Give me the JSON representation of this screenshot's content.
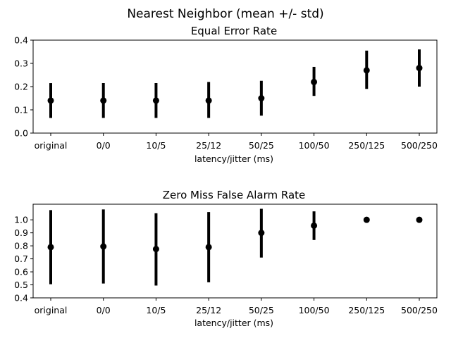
{
  "figure": {
    "suptitle": "Nearest Neighbor (mean +/- std)"
  },
  "chart_data": [
    {
      "type": "scatter",
      "title": "Equal Error Rate",
      "xlabel": "latency/jitter (ms)",
      "ylabel": "",
      "categories": [
        "original",
        "0/0",
        "10/5",
        "25/12",
        "50/25",
        "100/50",
        "250/125",
        "500/250"
      ],
      "values": [
        0.14,
        0.14,
        0.14,
        0.14,
        0.15,
        0.22,
        0.27,
        0.28
      ],
      "error_lower": [
        0.065,
        0.065,
        0.065,
        0.065,
        0.075,
        0.16,
        0.19,
        0.2
      ],
      "error_upper": [
        0.215,
        0.215,
        0.215,
        0.22,
        0.225,
        0.285,
        0.355,
        0.36
      ],
      "ylim": [
        0,
        0.4
      ],
      "yticks": [
        "0.0",
        "0.1",
        "0.2",
        "0.3",
        "0.4"
      ],
      "grid": false,
      "color": "#000000"
    },
    {
      "type": "scatter",
      "title": "Zero Miss False Alarm Rate",
      "xlabel": "latency/jitter (ms)",
      "ylabel": "",
      "categories": [
        "original",
        "0/0",
        "10/5",
        "25/12",
        "50/25",
        "100/50",
        "250/125",
        "500/250"
      ],
      "values": [
        0.79,
        0.795,
        0.775,
        0.79,
        0.9,
        0.955,
        1.0,
        1.0
      ],
      "error_lower": [
        0.505,
        0.51,
        0.495,
        0.52,
        0.71,
        0.845,
        1.0,
        1.0
      ],
      "error_upper": [
        1.075,
        1.08,
        1.05,
        1.06,
        1.085,
        1.065,
        1.0,
        1.0
      ],
      "ylim": [
        0.4,
        1.12
      ],
      "yticks": [
        "0.4",
        "0.5",
        "0.6",
        "0.7",
        "0.8",
        "0.9",
        "1.0"
      ],
      "grid": false,
      "color": "#000000"
    }
  ]
}
